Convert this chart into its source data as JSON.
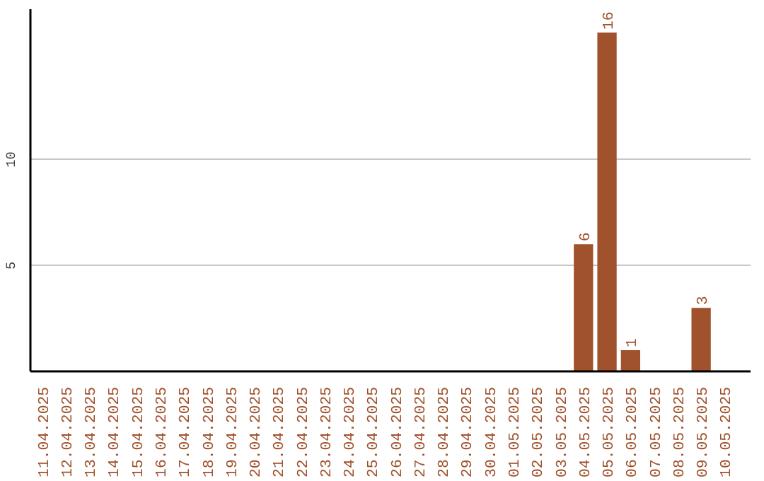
{
  "chart_data": {
    "type": "bar",
    "categories": [
      "11.04.2025",
      "12.04.2025",
      "13.04.2025",
      "14.04.2025",
      "15.04.2025",
      "16.04.2025",
      "17.04.2025",
      "18.04.2025",
      "19.04.2025",
      "20.04.2025",
      "21.04.2025",
      "22.04.2025",
      "23.04.2025",
      "24.04.2025",
      "25.04.2025",
      "26.04.2025",
      "27.04.2025",
      "28.04.2025",
      "29.04.2025",
      "30.04.2025",
      "01.05.2025",
      "02.05.2025",
      "03.05.2025",
      "04.05.2025",
      "05.05.2025",
      "06.05.2025",
      "07.05.2025",
      "08.05.2025",
      "09.05.2025",
      "10.05.2025"
    ],
    "values": [
      0,
      0,
      0,
      0,
      0,
      0,
      0,
      0,
      0,
      0,
      0,
      0,
      0,
      0,
      0,
      0,
      0,
      0,
      0,
      0,
      0,
      0,
      0,
      6,
      16,
      1,
      0,
      0,
      3,
      0
    ],
    "value_labels": [
      null,
      null,
      null,
      null,
      null,
      null,
      null,
      null,
      null,
      null,
      null,
      null,
      null,
      null,
      null,
      null,
      null,
      null,
      null,
      null,
      null,
      null,
      null,
      "6",
      "16",
      "1",
      null,
      null,
      "3",
      null
    ],
    "color": "#a0522d",
    "ylim": [
      0,
      17.1
    ],
    "yticks": [
      5,
      10
    ],
    "grid": "y"
  }
}
